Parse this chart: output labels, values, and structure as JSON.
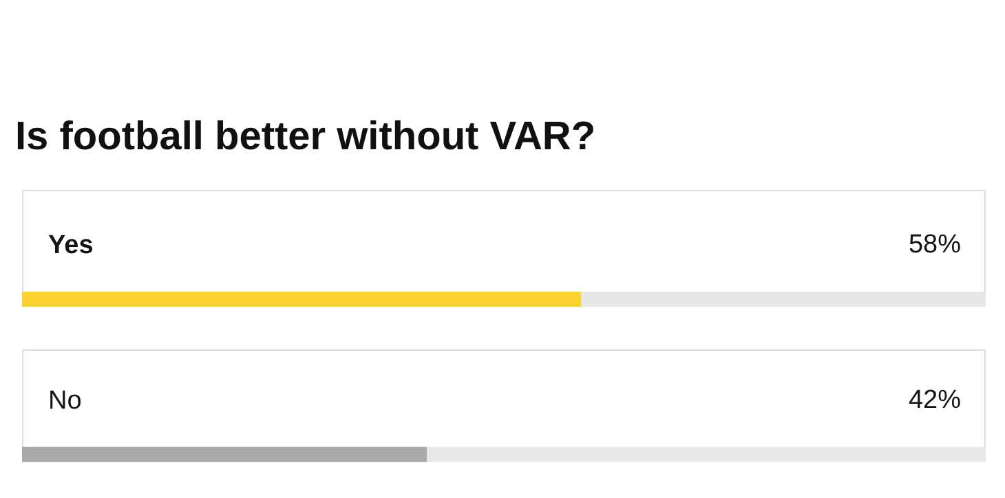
{
  "chart_data": {
    "type": "bar",
    "title": "Is football better without VAR?",
    "orientation": "horizontal",
    "categories": [
      "Yes",
      "No"
    ],
    "values": [
      58,
      42
    ],
    "colors": [
      "#fcd22e",
      "#aaaaaa"
    ],
    "value_labels": [
      "58%",
      "42%"
    ],
    "xlim": [
      0,
      100
    ],
    "grid": false,
    "tick_labels": "y"
  }
}
